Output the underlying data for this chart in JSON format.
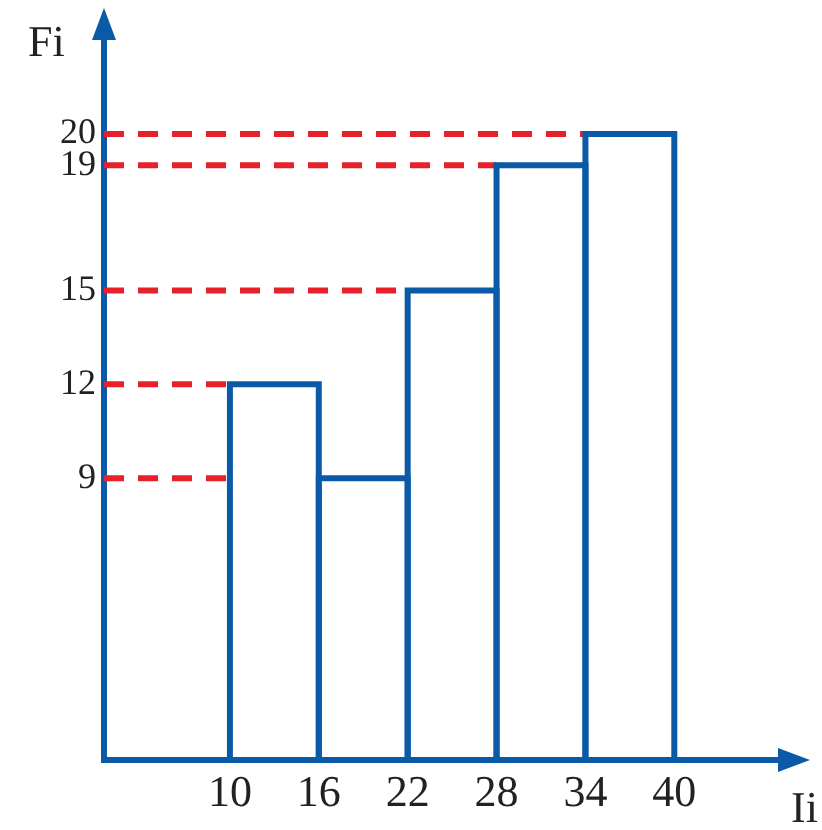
{
  "chart_data": {
    "type": "histogram",
    "xlabel": "Ii",
    "ylabel": "Fi",
    "bins": [
      10,
      16,
      22,
      28,
      34,
      40
    ],
    "values": [
      12,
      9,
      15,
      19,
      20
    ],
    "color": "#0b5aa8",
    "xlim": [
      1.5,
      47
    ],
    "xticks": [
      10,
      16,
      22,
      28,
      34,
      40
    ],
    "ylim": [
      0,
      23
    ],
    "yticks": [
      12,
      9,
      15,
      19,
      20
    ],
    "grid": false,
    "legend": false,
    "ref_lines": [
      {
        "axis": "y",
        "value": 12,
        "color": "#e8202a",
        "line_style": "dashed"
      },
      {
        "axis": "y",
        "value": 9,
        "color": "#e8202a",
        "line_style": "dashed"
      },
      {
        "axis": "y",
        "value": 15,
        "color": "#e8202a",
        "line_style": "dashed"
      },
      {
        "axis": "y",
        "value": 19,
        "color": "#e8202a",
        "line_style": "dashed"
      },
      {
        "axis": "y",
        "value": 20,
        "color": "#e8202a",
        "line_style": "dashed"
      }
    ]
  }
}
